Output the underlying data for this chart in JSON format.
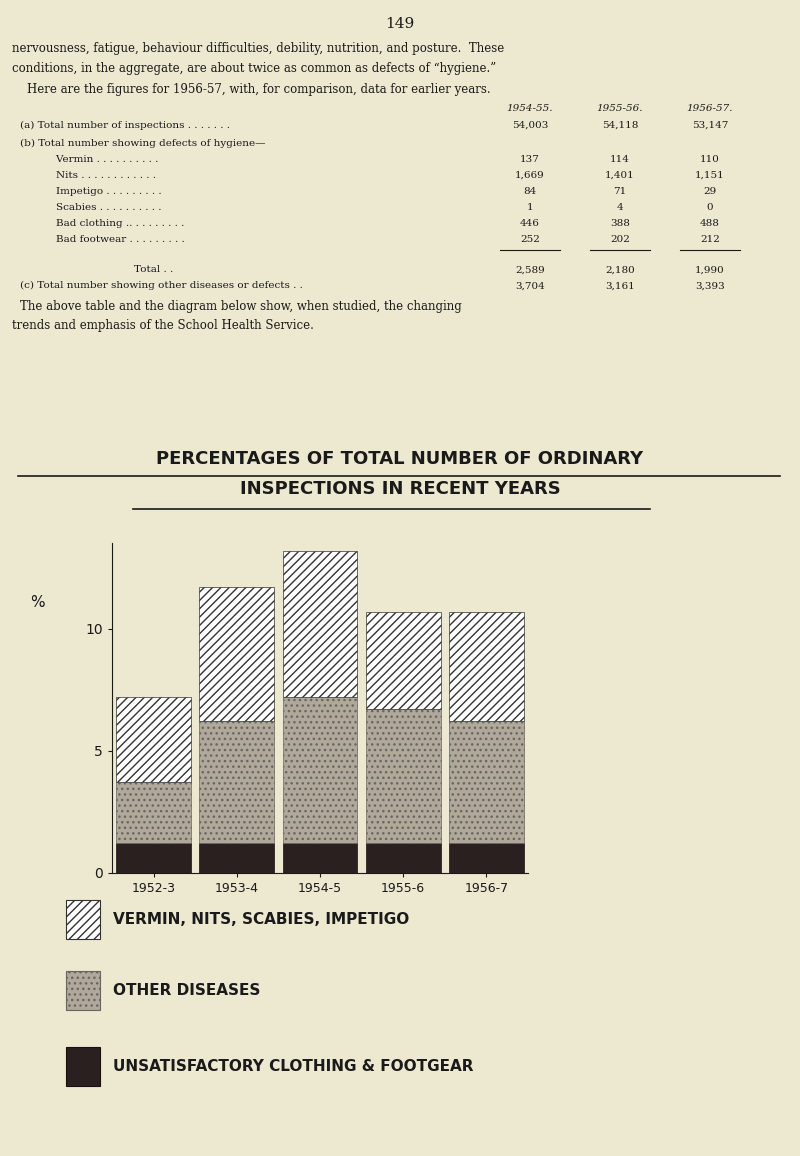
{
  "page_number": "149",
  "bg_color": "#ede8d0",
  "text_color": "#1a1a1a",
  "chart_title_line1": "PERCENTAGES OF TOTAL NUMBER OF ORDINARY",
  "chart_title_line2": "INSPECTIONS IN RECENT YEARS",
  "years": [
    "1952-3",
    "1953-4",
    "1954-5",
    "1955-6",
    "1956-7"
  ],
  "vermin_nits": [
    3.5,
    5.5,
    6.0,
    4.0,
    4.5
  ],
  "other_diseases": [
    2.5,
    5.0,
    6.0,
    5.5,
    5.0
  ],
  "clothing_footwear": [
    1.2,
    1.2,
    1.2,
    1.2,
    1.2
  ],
  "ylabel": "%",
  "ytick_labels": [
    "0",
    "5",
    "10"
  ],
  "ytick_vals": [
    0,
    5,
    10
  ],
  "ylim": [
    0,
    13.5
  ],
  "legend_items": [
    "VERMIN, NITS, SCABIES, IMPETIGO",
    "OTHER DISEASES",
    "UNSATISFACTORY CLOTHING & FOOTGEAR"
  ]
}
